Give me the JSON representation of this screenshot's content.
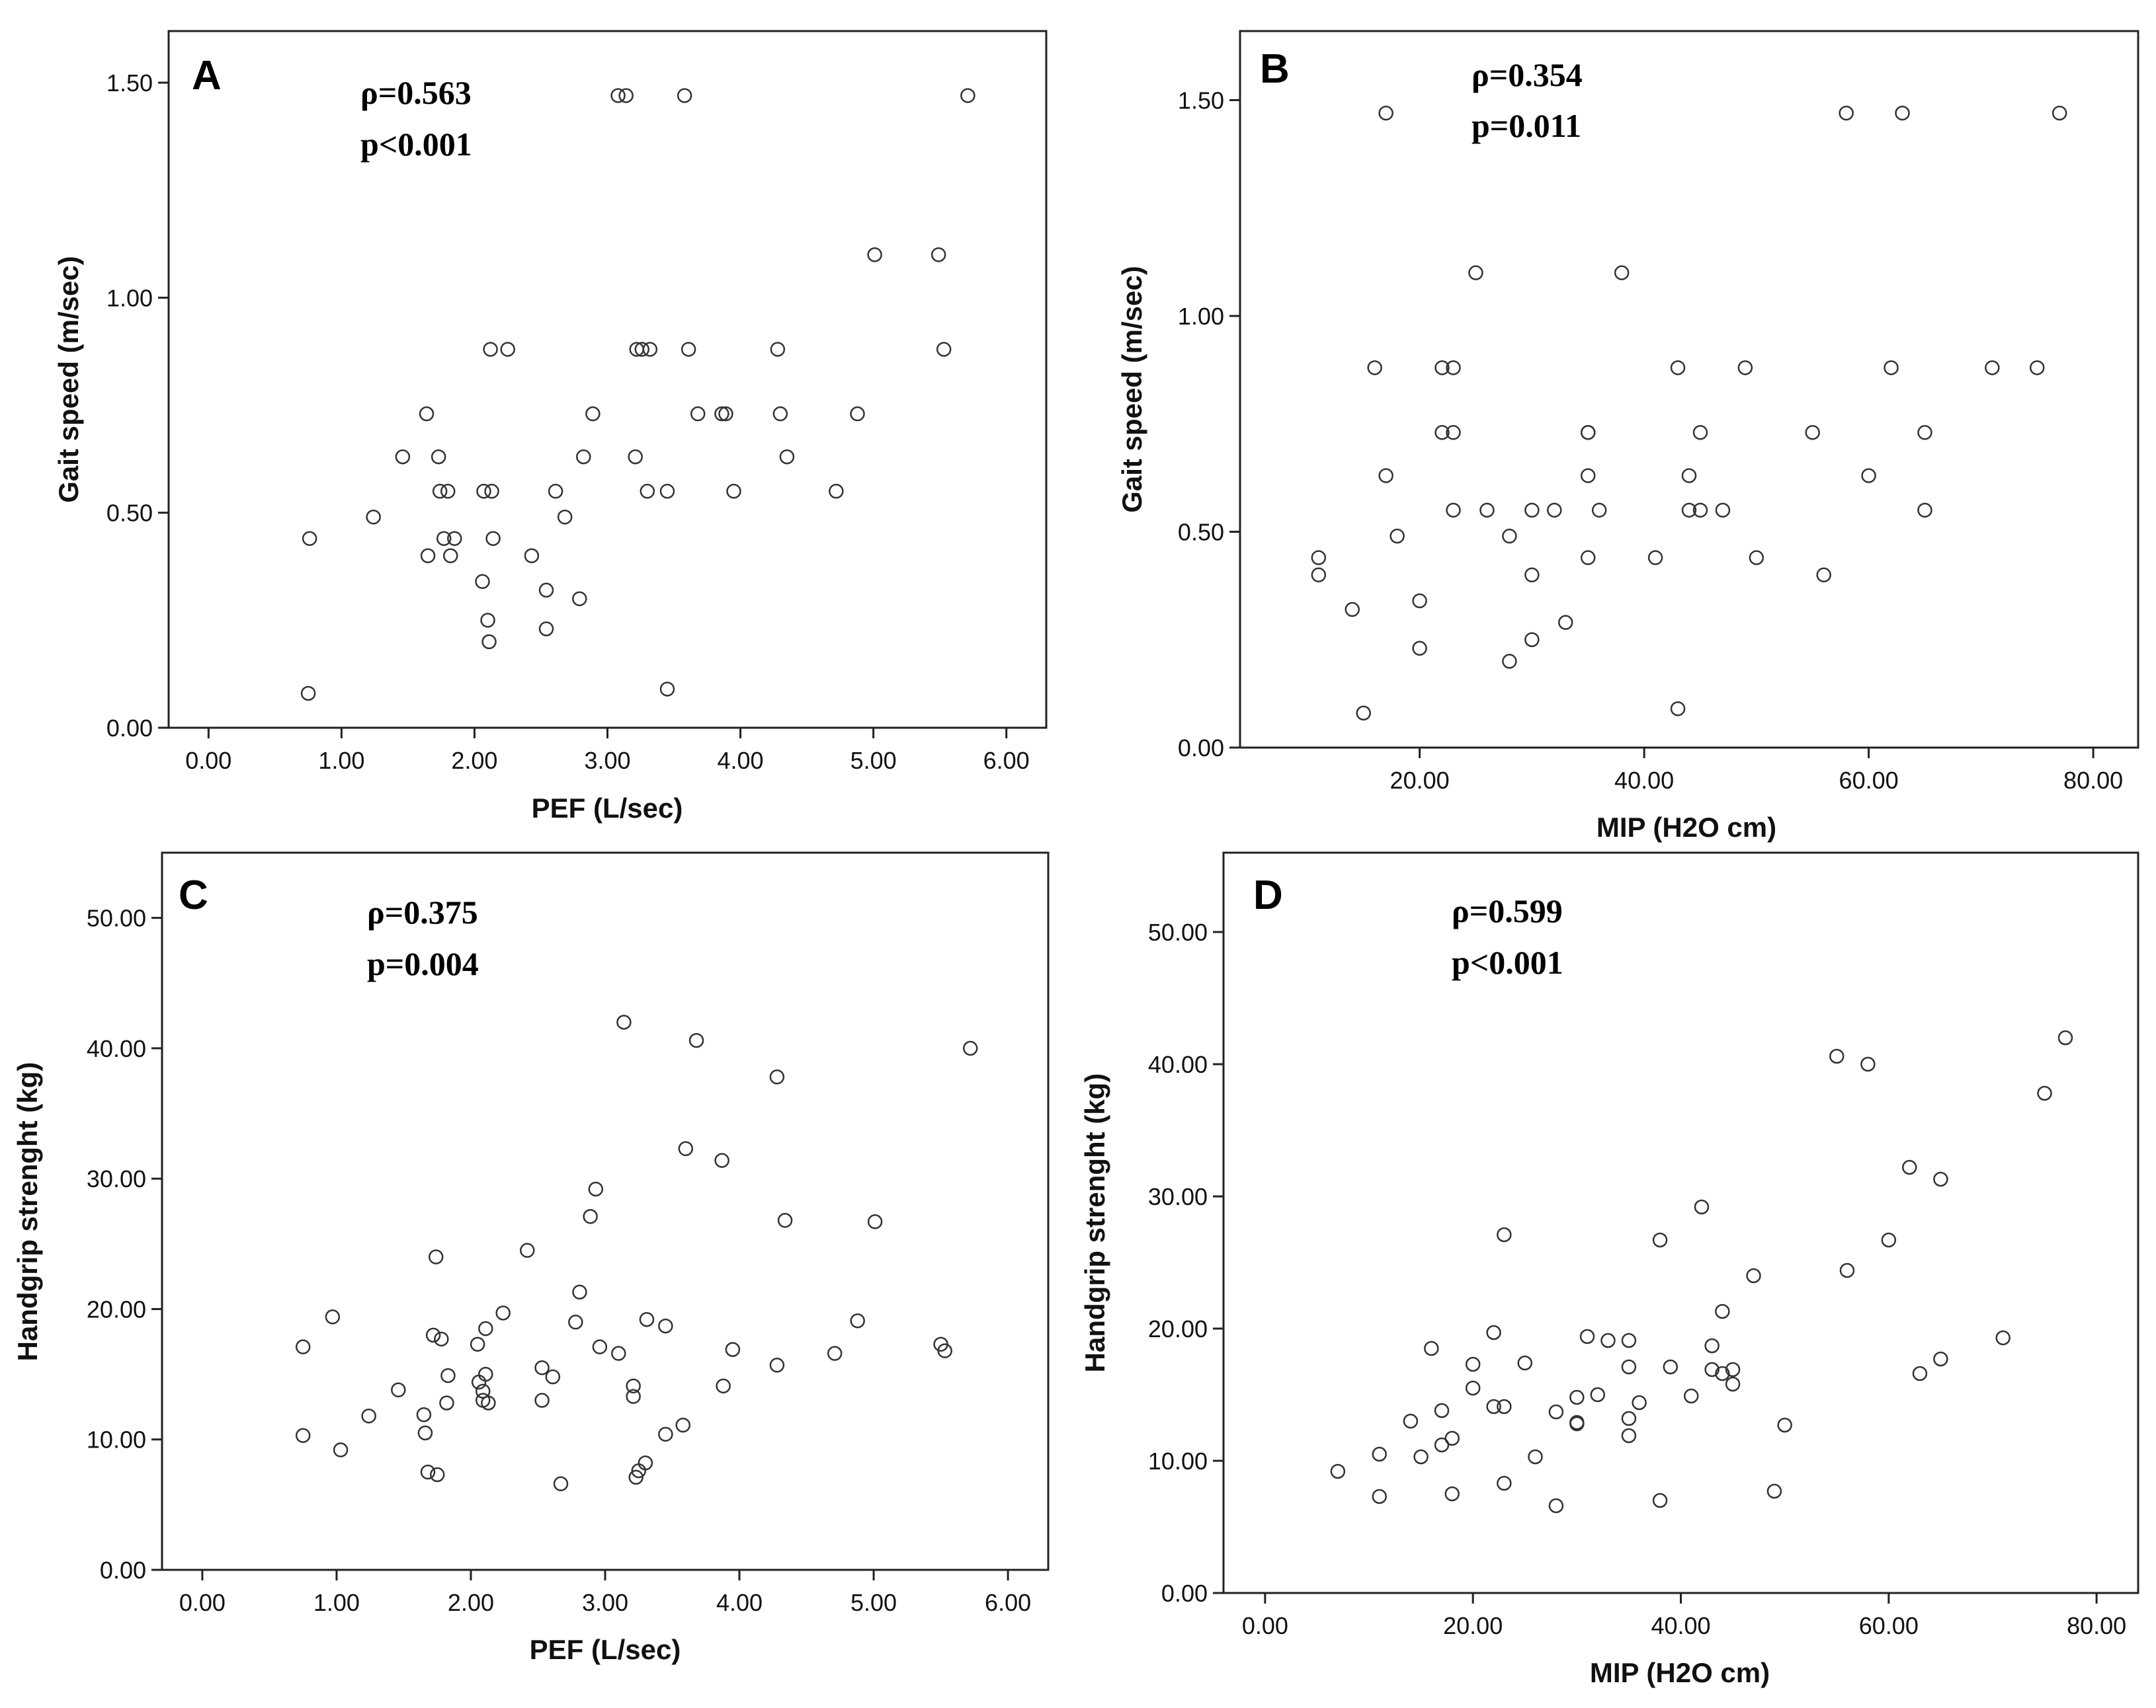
{
  "colors": {
    "marker_stroke": "#333333",
    "frame": "#222222"
  },
  "chart_data": [
    {
      "type": "scatter",
      "panel": "A",
      "annotation": [
        "ρ=0.563",
        "p<0.001"
      ],
      "xlabel": "PEF (L/sec)",
      "ylabel": "Gait speed (m/sec)",
      "xlim": [
        -0.3,
        6.3
      ],
      "ylim": [
        0,
        1.62
      ],
      "xticks": [
        0,
        1,
        2,
        3,
        4,
        5,
        6
      ],
      "xtick_labels": [
        "0.00",
        "1.00",
        "2.00",
        "3.00",
        "4.00",
        "5.00",
        "6.00"
      ],
      "yticks": [
        0,
        0.5,
        1.0,
        1.5
      ],
      "ytick_labels": [
        "0.00",
        "0.50",
        "1.00",
        "1.50"
      ],
      "points": [
        [
          0.75,
          0.08
        ],
        [
          0.76,
          0.44
        ],
        [
          1.24,
          0.49
        ],
        [
          1.46,
          0.63
        ],
        [
          1.64,
          0.73
        ],
        [
          1.65,
          0.4
        ],
        [
          1.73,
          0.63
        ],
        [
          1.74,
          0.55
        ],
        [
          1.77,
          0.44
        ],
        [
          1.8,
          0.55
        ],
        [
          1.82,
          0.4
        ],
        [
          1.85,
          0.44
        ],
        [
          2.06,
          0.34
        ],
        [
          2.07,
          0.55
        ],
        [
          2.1,
          0.25
        ],
        [
          2.11,
          0.2
        ],
        [
          2.12,
          0.88
        ],
        [
          2.13,
          0.55
        ],
        [
          2.14,
          0.44
        ],
        [
          2.25,
          0.88
        ],
        [
          2.43,
          0.4
        ],
        [
          2.54,
          0.32
        ],
        [
          2.54,
          0.23
        ],
        [
          2.61,
          0.55
        ],
        [
          2.68,
          0.49
        ],
        [
          2.79,
          0.3
        ],
        [
          2.82,
          0.63
        ],
        [
          2.89,
          0.73
        ],
        [
          3.08,
          1.47
        ],
        [
          3.14,
          1.47
        ],
        [
          3.21,
          0.63
        ],
        [
          3.22,
          0.88
        ],
        [
          3.26,
          0.88
        ],
        [
          3.3,
          0.55
        ],
        [
          3.32,
          0.88
        ],
        [
          3.45,
          0.55
        ],
        [
          3.45,
          0.09
        ],
        [
          3.58,
          1.47
        ],
        [
          3.61,
          0.88
        ],
        [
          3.68,
          0.73
        ],
        [
          3.86,
          0.73
        ],
        [
          3.89,
          0.73
        ],
        [
          3.95,
          0.55
        ],
        [
          4.28,
          0.88
        ],
        [
          4.3,
          0.73
        ],
        [
          4.35,
          0.63
        ],
        [
          4.72,
          0.55
        ],
        [
          4.88,
          0.73
        ],
        [
          5.01,
          1.1
        ],
        [
          5.49,
          1.1
        ],
        [
          5.53,
          0.88
        ],
        [
          5.71,
          1.47
        ]
      ]
    },
    {
      "type": "scatter",
      "panel": "B",
      "annotation": [
        "ρ=0.354",
        "p=0.011"
      ],
      "xlabel": "MIP (H2O cm)",
      "ylabel": "Gait speed (m/sec)",
      "xlim": [
        4,
        84
      ],
      "ylim": [
        0,
        1.66
      ],
      "xticks": [
        20,
        40,
        60,
        80
      ],
      "xtick_labels": [
        "20.00",
        "40.00",
        "60.00",
        "80.00"
      ],
      "yticks": [
        0,
        0.5,
        1.0,
        1.5
      ],
      "ytick_labels": [
        "0.00",
        "0.50",
        "1.00",
        "1.50"
      ],
      "points": [
        [
          11,
          0.44
        ],
        [
          11,
          0.4
        ],
        [
          14,
          0.32
        ],
        [
          15,
          0.08
        ],
        [
          16,
          0.88
        ],
        [
          17,
          0.63
        ],
        [
          17,
          1.47
        ],
        [
          18,
          0.49
        ],
        [
          20,
          0.34
        ],
        [
          20,
          0.23
        ],
        [
          22,
          0.88
        ],
        [
          22,
          0.73
        ],
        [
          23,
          0.88
        ],
        [
          23,
          0.73
        ],
        [
          23,
          0.55
        ],
        [
          25,
          1.1
        ],
        [
          26,
          0.55
        ],
        [
          28,
          0.49
        ],
        [
          28,
          0.2
        ],
        [
          30,
          0.55
        ],
        [
          30,
          0.4
        ],
        [
          30,
          0.25
        ],
        [
          32,
          0.55
        ],
        [
          33,
          0.29
        ],
        [
          35,
          0.73
        ],
        [
          35,
          0.73
        ],
        [
          35,
          0.63
        ],
        [
          35,
          0.44
        ],
        [
          36,
          0.55
        ],
        [
          38,
          1.1
        ],
        [
          41,
          0.44
        ],
        [
          43,
          0.88
        ],
        [
          43,
          0.09
        ],
        [
          44,
          0.63
        ],
        [
          44,
          0.55
        ],
        [
          45,
          0.73
        ],
        [
          45,
          0.55
        ],
        [
          47,
          0.55
        ],
        [
          49,
          0.88
        ],
        [
          50,
          0.44
        ],
        [
          55,
          0.73
        ],
        [
          56,
          0.4
        ],
        [
          58,
          1.47
        ],
        [
          60,
          0.63
        ],
        [
          62,
          0.88
        ],
        [
          63,
          1.47
        ],
        [
          65,
          0.73
        ],
        [
          65,
          0.55
        ],
        [
          71,
          0.88
        ],
        [
          75,
          0.88
        ],
        [
          77,
          1.47
        ]
      ]
    },
    {
      "type": "scatter",
      "panel": "C",
      "annotation": [
        "ρ=0.375",
        "p=0.004"
      ],
      "xlabel": "PEF (L/sec)",
      "ylabel": "Handgrip strenght (kg)",
      "xlim": [
        -0.3,
        6.3
      ],
      "ylim": [
        0,
        55
      ],
      "xticks": [
        0,
        1,
        2,
        3,
        4,
        5,
        6
      ],
      "xtick_labels": [
        "0.00",
        "1.00",
        "2.00",
        "3.00",
        "4.00",
        "5.00",
        "6.00"
      ],
      "yticks": [
        0,
        10,
        20,
        30,
        40,
        50
      ],
      "ytick_labels": [
        "0.00",
        "10.00",
        "20.00",
        "30.00",
        "40.00",
        "50.00"
      ],
      "points": [
        [
          0.75,
          10.3
        ],
        [
          0.75,
          17.1
        ],
        [
          0.97,
          19.4
        ],
        [
          1.03,
          9.2
        ],
        [
          1.24,
          11.8
        ],
        [
          1.46,
          13.8
        ],
        [
          1.65,
          11.9
        ],
        [
          1.66,
          10.5
        ],
        [
          1.68,
          7.5
        ],
        [
          1.72,
          18.0
        ],
        [
          1.74,
          24.0
        ],
        [
          1.75,
          7.3
        ],
        [
          1.78,
          17.7
        ],
        [
          1.82,
          12.8
        ],
        [
          1.83,
          14.9
        ],
        [
          2.05,
          17.3
        ],
        [
          2.06,
          14.4
        ],
        [
          2.09,
          13.7
        ],
        [
          2.09,
          13.0
        ],
        [
          2.11,
          18.5
        ],
        [
          2.11,
          15.0
        ],
        [
          2.13,
          12.8
        ],
        [
          2.24,
          19.7
        ],
        [
          2.42,
          24.5
        ],
        [
          2.53,
          13.0
        ],
        [
          2.53,
          15.5
        ],
        [
          2.61,
          14.8
        ],
        [
          2.67,
          6.6
        ],
        [
          2.78,
          19.0
        ],
        [
          2.81,
          21.3
        ],
        [
          2.89,
          27.1
        ],
        [
          2.93,
          29.2
        ],
        [
          2.96,
          17.1
        ],
        [
          3.1,
          16.6
        ],
        [
          3.14,
          42.0
        ],
        [
          3.21,
          13.3
        ],
        [
          3.21,
          14.1
        ],
        [
          3.23,
          7.1
        ],
        [
          3.25,
          7.6
        ],
        [
          3.3,
          8.2
        ],
        [
          3.31,
          19.2
        ],
        [
          3.45,
          10.4
        ],
        [
          3.45,
          18.7
        ],
        [
          3.58,
          11.1
        ],
        [
          3.6,
          32.3
        ],
        [
          3.68,
          40.6
        ],
        [
          3.87,
          31.4
        ],
        [
          3.88,
          14.1
        ],
        [
          3.95,
          16.9
        ],
        [
          4.28,
          15.7
        ],
        [
          4.28,
          37.8
        ],
        [
          4.34,
          26.8
        ],
        [
          4.71,
          16.6
        ],
        [
          4.88,
          19.1
        ],
        [
          5.01,
          26.7
        ],
        [
          5.5,
          17.3
        ],
        [
          5.53,
          16.8
        ],
        [
          5.72,
          40.0
        ]
      ]
    },
    {
      "type": "scatter",
      "panel": "D",
      "annotation": [
        "ρ=0.599",
        "p<0.001"
      ],
      "xlabel": "MIP (H2O cm)",
      "ylabel": "Handgrip strenght (kg)",
      "xlim": [
        -4,
        84
      ],
      "ylim": [
        0,
        56
      ],
      "xticks": [
        0,
        20,
        40,
        60,
        80
      ],
      "xtick_labels": [
        "0.00",
        "20.00",
        "40.00",
        "60.00",
        "80.00"
      ],
      "yticks": [
        0,
        10,
        20,
        30,
        40,
        50
      ],
      "ytick_labels": [
        "0.00",
        "10.00",
        "20.00",
        "30.00",
        "40.00",
        "50.00"
      ],
      "points": [
        [
          7,
          9.2
        ],
        [
          11,
          10.5
        ],
        [
          11,
          7.3
        ],
        [
          14,
          13.0
        ],
        [
          15,
          10.3
        ],
        [
          16,
          18.5
        ],
        [
          17,
          11.2
        ],
        [
          17,
          13.8
        ],
        [
          18,
          11.7
        ],
        [
          18,
          7.5
        ],
        [
          20,
          17.3
        ],
        [
          20,
          15.5
        ],
        [
          22,
          19.7
        ],
        [
          22,
          14.1
        ],
        [
          23,
          27.1
        ],
        [
          23,
          14.1
        ],
        [
          23,
          8.3
        ],
        [
          25,
          17.4
        ],
        [
          26,
          10.3
        ],
        [
          28,
          13.7
        ],
        [
          28,
          6.6
        ],
        [
          30,
          12.9
        ],
        [
          30,
          12.8
        ],
        [
          30,
          14.8
        ],
        [
          31,
          19.4
        ],
        [
          32,
          15.0
        ],
        [
          33,
          19.1
        ],
        [
          35,
          19.1
        ],
        [
          35,
          17.1
        ],
        [
          35,
          13.2
        ],
        [
          35,
          11.9
        ],
        [
          36,
          14.4
        ],
        [
          38,
          26.7
        ],
        [
          38,
          7.0
        ],
        [
          39,
          17.1
        ],
        [
          41,
          14.9
        ],
        [
          42,
          29.2
        ],
        [
          43,
          18.7
        ],
        [
          43,
          16.9
        ],
        [
          44,
          21.3
        ],
        [
          44,
          16.6
        ],
        [
          45,
          16.9
        ],
        [
          45,
          15.8
        ],
        [
          47,
          24.0
        ],
        [
          49,
          7.7
        ],
        [
          50,
          12.7
        ],
        [
          55,
          40.6
        ],
        [
          56,
          24.4
        ],
        [
          58,
          40.0
        ],
        [
          60,
          26.7
        ],
        [
          62,
          32.2
        ],
        [
          63,
          16.6
        ],
        [
          65,
          31.3
        ],
        [
          65,
          17.7
        ],
        [
          71,
          19.3
        ],
        [
          75,
          37.8
        ],
        [
          77,
          42.0
        ]
      ]
    }
  ]
}
